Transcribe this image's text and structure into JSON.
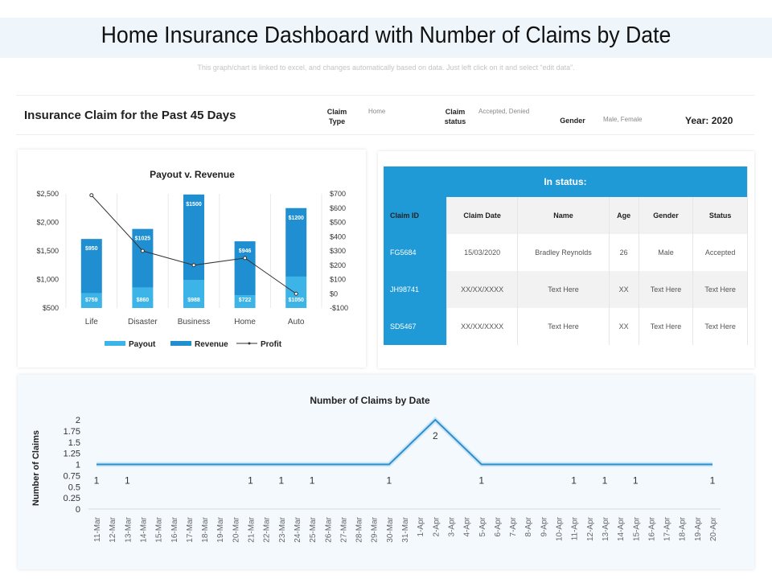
{
  "header": {
    "title": "Home Insurance Dashboard with Number of Claims by Date",
    "subtitle": "This graph/chart is linked to excel, and changes automatically  based on data. Just left click on it and select “edit data”."
  },
  "filters": {
    "panel_title": "Insurance Claim for the Past 45 Days",
    "items": [
      {
        "label": "Claim Type",
        "value": "Home"
      },
      {
        "label": "Claim status",
        "value": "Accepted, Denied"
      },
      {
        "label": "Gender",
        "value": "Male, Female"
      }
    ],
    "year": "Year: 2020"
  },
  "table": {
    "title": "In status:",
    "columns": [
      "Claim ID",
      "Claim Date",
      "Name",
      "Age",
      "Gender",
      "Status"
    ],
    "rows": [
      [
        "FG5684",
        "15/03/2020",
        "Bradley Reynolds",
        "26",
        "Male",
        "Accepted"
      ],
      [
        "JH98741",
        "XX/XX/XXXX",
        "Text Here",
        "XX",
        "Text Here",
        "Text Here"
      ],
      [
        "SD5467",
        "XX/XX/XXXX",
        "Text Here",
        "XX",
        "Text Here",
        "Text Here"
      ]
    ]
  },
  "chart_data": [
    {
      "type": "bar",
      "title": "Payout v. Revenue",
      "stacked": true,
      "categories": [
        "Life",
        "Disaster",
        "Business",
        "Home",
        "Auto"
      ],
      "series": [
        {
          "name": "Payout",
          "color": "#3cb4e7",
          "values": [
            759,
            860,
            988,
            722,
            1050
          ],
          "value_labels": [
            "$759",
            "$860",
            "$988",
            "$722",
            "$1050"
          ]
        },
        {
          "name": "Revenue",
          "color": "#1f8fd1",
          "values": [
            950,
            1025,
            1500,
            946,
            1200
          ],
          "value_labels": [
            "$950",
            "$1025",
            "$1500",
            "$946",
            "$1200"
          ]
        },
        {
          "name": "Profit",
          "type": "line",
          "axis": "y2",
          "color": "#333333",
          "values": [
            690,
            300,
            200,
            250,
            0
          ]
        }
      ],
      "ylim": [
        500,
        2500
      ],
      "yticks": [
        {
          "value": 500,
          "label": "$500"
        },
        {
          "value": 1000,
          "label": "$1,000"
        },
        {
          "value": 1500,
          "label": "$1,500"
        },
        {
          "value": 2000,
          "label": "$2,000"
        },
        {
          "value": 2500,
          "label": "$2,500"
        }
      ],
      "y2lim": [
        -100,
        700
      ],
      "y2ticks": [
        {
          "value": -100,
          "label": "-$100"
        },
        {
          "value": 0,
          "label": "$0"
        },
        {
          "value": 100,
          "label": "$100"
        },
        {
          "value": 200,
          "label": "$200"
        },
        {
          "value": 300,
          "label": "$300"
        },
        {
          "value": 400,
          "label": "$400"
        },
        {
          "value": 500,
          "label": "$500"
        },
        {
          "value": 600,
          "label": "$600"
        },
        {
          "value": 700,
          "label": "$700"
        }
      ],
      "grid": false,
      "legend": "bottom"
    },
    {
      "type": "line",
      "title": "Number of Claims by Date",
      "y_label": "Number of Claims",
      "categories": [
        "11-Mar",
        "12-Mar",
        "13-Mar",
        "14-Mar",
        "15-Mar",
        "16-Mar",
        "17-Mar",
        "18-Mar",
        "19-Mar",
        "20-Mar",
        "21-Mar",
        "22-Mar",
        "23-Mar",
        "24-Mar",
        "25-Mar",
        "26-Mar",
        "27-Mar",
        "28-Mar",
        "29-Mar",
        "30-Mar",
        "31-Mar",
        "1-Apr",
        "2-Apr",
        "3-Apr",
        "4-Apr",
        "5-Apr",
        "6-Apr",
        "7-Apr",
        "8-Apr",
        "9-Apr",
        "10-Apr",
        "11-Apr",
        "12-Apr",
        "13-Apr",
        "14-Apr",
        "15-Apr",
        "16-Apr",
        "17-Apr",
        "18-Apr",
        "19-Apr",
        "20-Apr"
      ],
      "series": [
        {
          "color": "#2b8fd0",
          "x": [
            "11-Mar",
            "13-Mar",
            "21-Mar",
            "23-Mar",
            "25-Mar",
            "30-Mar",
            "2-Apr",
            "5-Apr",
            "11-Apr",
            "13-Apr",
            "15-Apr",
            "20-Apr"
          ],
          "values": [
            1,
            1,
            1,
            1,
            1,
            1,
            2,
            1,
            1,
            1,
            1,
            1
          ]
        }
      ],
      "ylim": [
        0,
        2
      ],
      "yticks": [
        0,
        0.25,
        0.5,
        0.75,
        1,
        1.25,
        1.5,
        1.75,
        2
      ],
      "grid": false
    }
  ]
}
